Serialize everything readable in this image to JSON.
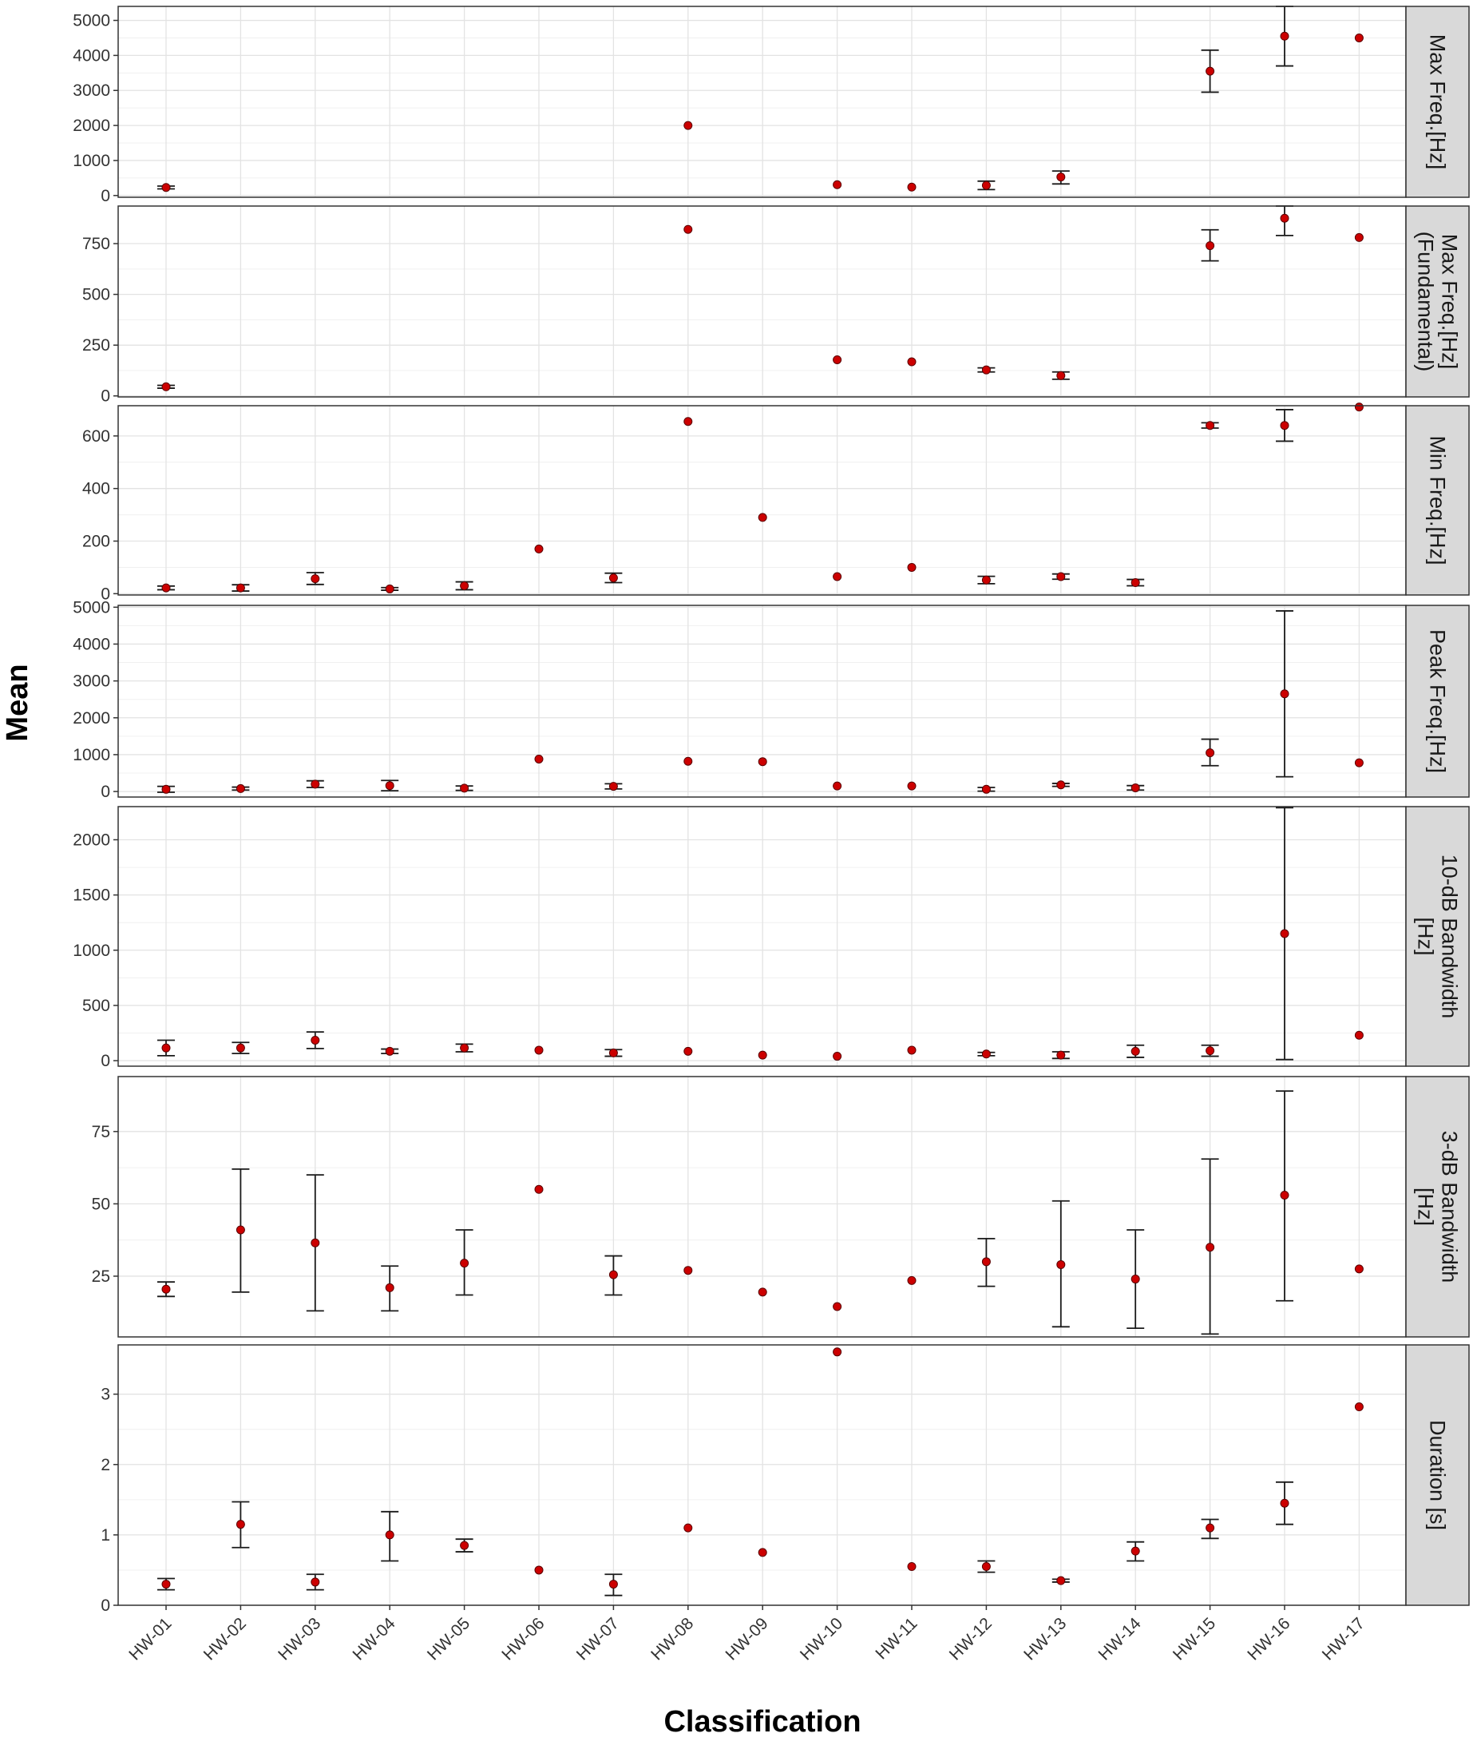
{
  "chart_data": {
    "type": "scatter",
    "xlabel": "Classification",
    "ylabel": "Mean",
    "categories": [
      "HW-01",
      "HW-02",
      "HW-03",
      "HW-04",
      "HW-05",
      "HW-06",
      "HW-07",
      "HW-08",
      "HW-09",
      "HW-10",
      "HW-11",
      "HW-12",
      "HW-13",
      "HW-14",
      "HW-15",
      "HW-16",
      "HW-17"
    ],
    "point_color": "#cc0000",
    "errorbar_color": "#1a1a1a",
    "strip_fill": "#d9d9d9",
    "grid": true,
    "facets": [
      {
        "label": [
          "Max Freq.[Hz]"
        ],
        "ylim": [
          -50,
          5400
        ],
        "yticks": [
          0,
          1000,
          2000,
          3000,
          4000,
          5000
        ],
        "values": [
          230,
          null,
          null,
          null,
          null,
          null,
          null,
          2000,
          null,
          310,
          240,
          290,
          530,
          null,
          3550,
          4550,
          4500
        ],
        "lower": [
          190,
          null,
          null,
          null,
          null,
          null,
          null,
          null,
          null,
          null,
          null,
          170,
          330,
          null,
          2950,
          3700,
          null
        ],
        "upper": [
          270,
          null,
          null,
          null,
          null,
          null,
          null,
          null,
          null,
          null,
          null,
          410,
          700,
          null,
          4150,
          5400,
          null
        ]
      },
      {
        "label": [
          "Max Freq.[Hz]",
          "(Fundamental)"
        ],
        "ylim": [
          -5,
          935
        ],
        "yticks": [
          0,
          250,
          500,
          750
        ],
        "values": [
          45,
          null,
          null,
          null,
          null,
          null,
          null,
          820,
          null,
          178,
          168,
          128,
          100,
          null,
          740,
          875,
          780
        ],
        "lower": [
          38,
          null,
          null,
          null,
          null,
          null,
          null,
          null,
          null,
          null,
          null,
          118,
          82,
          null,
          665,
          790,
          null
        ],
        "upper": [
          52,
          null,
          null,
          null,
          null,
          null,
          null,
          null,
          null,
          null,
          null,
          138,
          118,
          null,
          818,
          935,
          null
        ]
      },
      {
        "label": [
          "Min Freq.[Hz]"
        ],
        "ylim": [
          -5,
          715
        ],
        "yticks": [
          0,
          200,
          400,
          600
        ],
        "values": [
          22,
          22,
          57,
          18,
          30,
          170,
          60,
          655,
          290,
          65,
          100,
          52,
          65,
          42,
          640,
          640,
          710
        ],
        "lower": [
          15,
          10,
          35,
          13,
          15,
          null,
          42,
          null,
          null,
          null,
          null,
          38,
          55,
          30,
          630,
          580,
          null
        ],
        "upper": [
          29,
          34,
          80,
          23,
          45,
          null,
          78,
          null,
          null,
          null,
          null,
          66,
          75,
          54,
          650,
          700,
          null
        ]
      },
      {
        "label": [
          "Peak Freq.[Hz]"
        ],
        "ylim": [
          -150,
          5050
        ],
        "yticks": [
          0,
          1000,
          2000,
          3000,
          4000,
          5000
        ],
        "values": [
          60,
          80,
          200,
          160,
          90,
          880,
          140,
          820,
          810,
          150,
          150,
          60,
          180,
          100,
          1050,
          2650,
          780
        ],
        "lower": [
          -20,
          40,
          110,
          20,
          30,
          null,
          70,
          null,
          null,
          null,
          null,
          10,
          140,
          40,
          700,
          400,
          null
        ],
        "upper": [
          140,
          120,
          290,
          300,
          150,
          null,
          210,
          null,
          null,
          null,
          null,
          110,
          220,
          160,
          1420,
          4900,
          null
        ]
      },
      {
        "label": [
          "10-dB Bandwidth",
          "[Hz]"
        ],
        "ylim": [
          -50,
          2300
        ],
        "yticks": [
          0,
          500,
          1000,
          1500,
          2000
        ],
        "values": [
          115,
          115,
          185,
          85,
          115,
          95,
          70,
          85,
          50,
          40,
          95,
          60,
          50,
          85,
          90,
          1150,
          230
        ],
        "lower": [
          45,
          65,
          110,
          65,
          80,
          null,
          40,
          null,
          null,
          null,
          null,
          45,
          20,
          30,
          40,
          10,
          null
        ],
        "upper": [
          185,
          165,
          260,
          105,
          150,
          null,
          100,
          null,
          null,
          null,
          null,
          75,
          80,
          140,
          140,
          2290,
          null
        ]
      },
      {
        "label": [
          "3-dB Bandwidth",
          "[Hz]"
        ],
        "ylim": [
          4,
          94
        ],
        "yticks": [
          25,
          50,
          75
        ],
        "values": [
          20.5,
          41,
          36.5,
          21,
          29.5,
          55,
          25.5,
          27,
          19.5,
          14.5,
          23.5,
          30,
          29,
          24,
          35,
          53,
          27.5
        ],
        "lower": [
          18,
          19.5,
          13,
          13,
          18.5,
          null,
          18.5,
          null,
          null,
          null,
          null,
          21.5,
          7.5,
          7,
          5,
          16.5,
          null
        ],
        "upper": [
          23,
          62,
          60,
          28.5,
          41,
          null,
          32,
          null,
          null,
          null,
          null,
          38,
          51,
          41,
          65.5,
          89,
          null
        ]
      },
      {
        "label": [
          "Duration [s]"
        ],
        "ylim": [
          0,
          3.7
        ],
        "yticks": [
          0,
          1,
          2,
          3
        ],
        "values": [
          0.3,
          1.15,
          0.33,
          1.0,
          0.85,
          0.5,
          0.3,
          1.1,
          0.75,
          3.6,
          0.55,
          0.55,
          0.35,
          0.77,
          1.1,
          1.45,
          2.82
        ],
        "lower": [
          0.22,
          0.82,
          0.22,
          0.63,
          0.76,
          null,
          0.14,
          null,
          null,
          null,
          null,
          0.47,
          0.33,
          0.63,
          0.95,
          1.15,
          null
        ],
        "upper": [
          0.38,
          1.47,
          0.44,
          1.33,
          0.94,
          null,
          0.44,
          null,
          null,
          null,
          null,
          0.63,
          0.37,
          0.9,
          1.22,
          1.75,
          null
        ]
      }
    ]
  }
}
